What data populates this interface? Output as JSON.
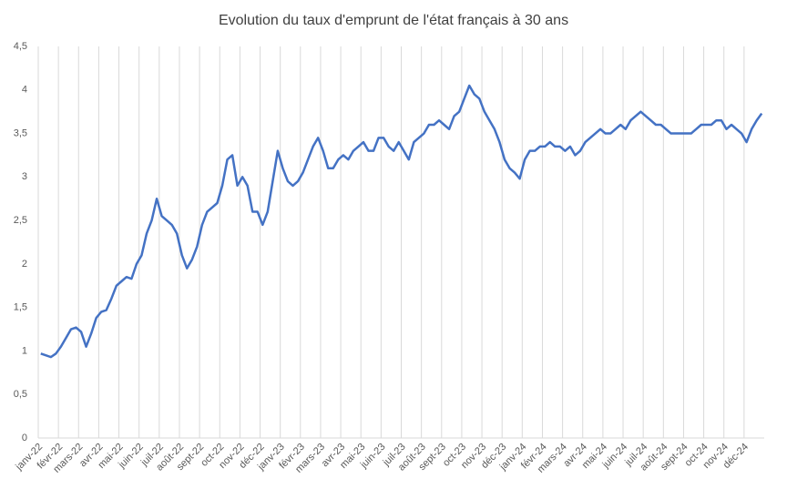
{
  "chart_data": {
    "type": "line",
    "title": "Evolution du taux d'emprunt de l'état français à 30 ans",
    "categories": [
      "janv-22",
      null,
      null,
      null,
      "févr-22",
      null,
      null,
      null,
      "mars-22",
      null,
      null,
      null,
      "avr-22",
      null,
      null,
      null,
      "mai-22",
      null,
      null,
      null,
      "juin-22",
      null,
      null,
      null,
      "juil-22",
      null,
      null,
      null,
      "août-22",
      null,
      null,
      null,
      "sept-22",
      null,
      null,
      null,
      "oct-22",
      null,
      null,
      null,
      "nov-22",
      null,
      null,
      null,
      "déc-22",
      null,
      null,
      null,
      "janv-23",
      null,
      null,
      null,
      "févr-23",
      null,
      null,
      null,
      "mars-23",
      null,
      null,
      null,
      "avr-23",
      null,
      null,
      null,
      "mai-23",
      null,
      null,
      null,
      "juin-23",
      null,
      null,
      null,
      "juil-23",
      null,
      null,
      null,
      "août-23",
      null,
      null,
      null,
      "sept-23",
      null,
      null,
      null,
      "oct-23",
      null,
      null,
      null,
      "nov-23",
      null,
      null,
      null,
      "déc-23",
      null,
      null,
      null,
      "janv-24",
      null,
      null,
      null,
      "févr-24",
      null,
      null,
      null,
      "mars-24",
      null,
      null,
      null,
      "avr-24",
      null,
      null,
      null,
      "mai-24",
      null,
      null,
      null,
      "juin-24",
      null,
      null,
      null,
      "juil-24",
      null,
      null,
      null,
      "août-24",
      null,
      null,
      null,
      "sept-24",
      null,
      null,
      null,
      "oct-24",
      null,
      null,
      null,
      "nov-24",
      null,
      null,
      null,
      "déc-24",
      null,
      null,
      null
    ],
    "series": [
      {
        "color": "#4472c4",
        "values": [
          0.97,
          0.95,
          0.93,
          0.97,
          1.05,
          1.15,
          1.25,
          1.27,
          1.22,
          1.05,
          1.2,
          1.38,
          1.45,
          1.47,
          1.6,
          1.75,
          1.8,
          1.85,
          1.83,
          2.0,
          2.1,
          2.35,
          2.5,
          2.75,
          2.55,
          2.5,
          2.45,
          2.35,
          2.1,
          1.95,
          2.05,
          2.2,
          2.45,
          2.6,
          2.65,
          2.7,
          2.9,
          3.2,
          3.25,
          2.9,
          3.0,
          2.9,
          2.6,
          2.6,
          2.45,
          2.6,
          2.95,
          3.3,
          3.1,
          2.95,
          2.9,
          2.95,
          3.05,
          3.2,
          3.35,
          3.45,
          3.3,
          3.1,
          3.1,
          3.2,
          3.25,
          3.2,
          3.3,
          3.35,
          3.4,
          3.3,
          3.3,
          3.45,
          3.45,
          3.35,
          3.3,
          3.4,
          3.3,
          3.2,
          3.4,
          3.45,
          3.5,
          3.6,
          3.6,
          3.65,
          3.6,
          3.55,
          3.7,
          3.75,
          3.9,
          4.05,
          3.95,
          3.9,
          3.75,
          3.65,
          3.55,
          3.4,
          3.2,
          3.1,
          3.05,
          2.98,
          3.2,
          3.3,
          3.3,
          3.35,
          3.35,
          3.4,
          3.35,
          3.35,
          3.3,
          3.35,
          3.25,
          3.3,
          3.4,
          3.45,
          3.5,
          3.55,
          3.5,
          3.5,
          3.55,
          3.6,
          3.55,
          3.65,
          3.7,
          3.75,
          3.7,
          3.65,
          3.6,
          3.6,
          3.55,
          3.5,
          3.5,
          3.5,
          3.5,
          3.5,
          3.55,
          3.6,
          3.6,
          3.6,
          3.65,
          3.65,
          3.55,
          3.6,
          3.55,
          3.5,
          3.4,
          3.55,
          3.65,
          3.73
        ]
      }
    ],
    "ylim": [
      0,
      4.5
    ],
    "yticks": [
      0,
      {
        "value": 0.5,
        "label": "0,5"
      },
      1,
      {
        "value": 1.5,
        "label": "1,5"
      },
      2,
      {
        "value": 2.5,
        "label": "2,5"
      },
      3,
      {
        "value": 3.5,
        "label": "3,5"
      },
      4,
      {
        "value": 4.5,
        "label": "4,5"
      }
    ],
    "grid": "x"
  }
}
